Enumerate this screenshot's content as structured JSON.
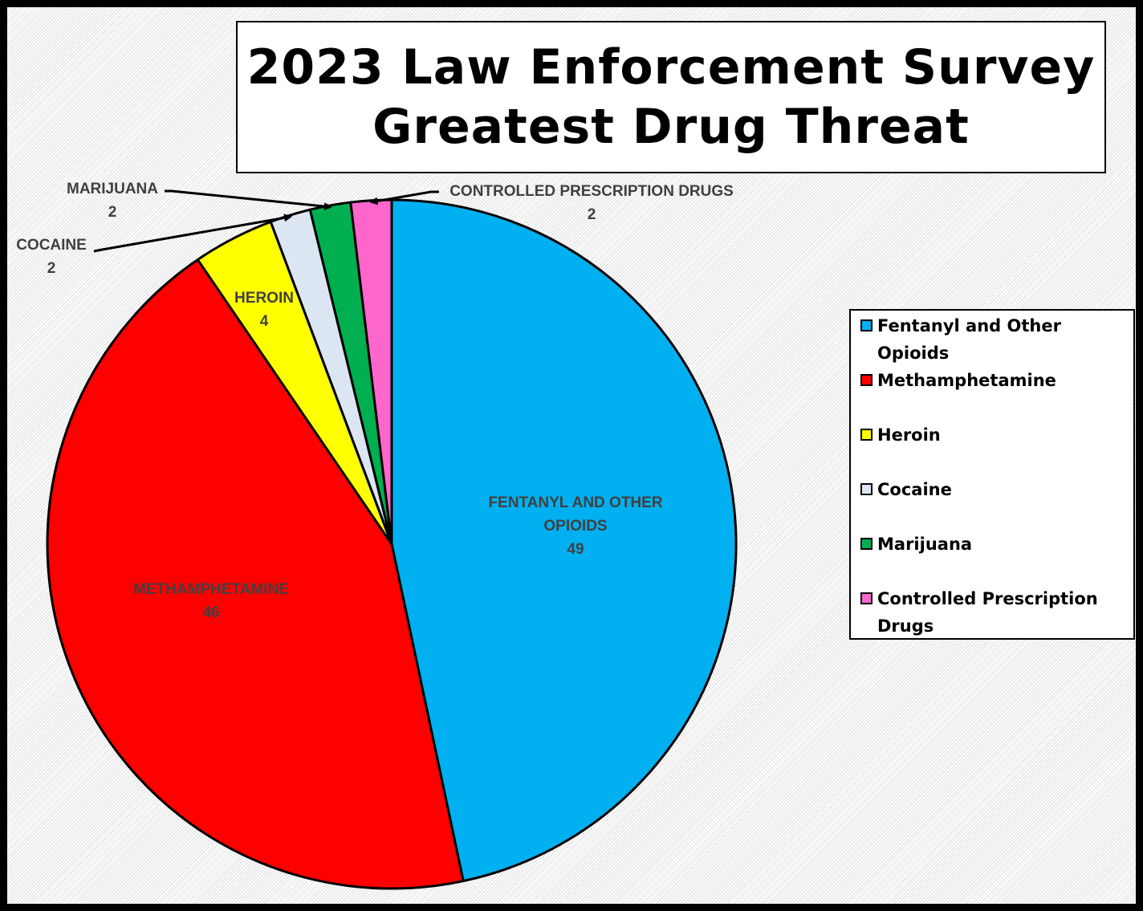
{
  "chart_data": {
    "type": "pie",
    "title_lines": [
      "2023 Law Enforcement Survey",
      "Greatest Drug Threat"
    ],
    "slices": [
      {
        "legend_label": "Fentanyl and Other Opioids",
        "data_label": "FENTANYL AND OTHER OPIOIDS",
        "value": 49,
        "value_text": "49",
        "color": "#00B0F0"
      },
      {
        "legend_label": "Methamphetamine",
        "data_label": "METHAMPHETAMINE",
        "value": 46,
        "value_text": "46",
        "color": "#FF0000"
      },
      {
        "legend_label": "Heroin",
        "data_label": "HEROIN",
        "value": 4,
        "value_text": "4",
        "color": "#FFFF00"
      },
      {
        "legend_label": "Cocaine",
        "data_label": "COCAINE",
        "value": 2,
        "value_text": "2",
        "color": "#DCE6F2"
      },
      {
        "legend_label": "Marijuana",
        "data_label": "MARIJUANA",
        "value": 2,
        "value_text": "2",
        "color": "#00B050"
      },
      {
        "legend_label": "Controlled Prescription Drugs",
        "data_label": "CONTROLLED PRESCRIPTION DRUGS",
        "value": 2,
        "value_text": "2",
        "color": "#FF66CC"
      }
    ],
    "start_angle": "12 o'clock",
    "direction": "clockwise",
    "legend_position": "right"
  }
}
